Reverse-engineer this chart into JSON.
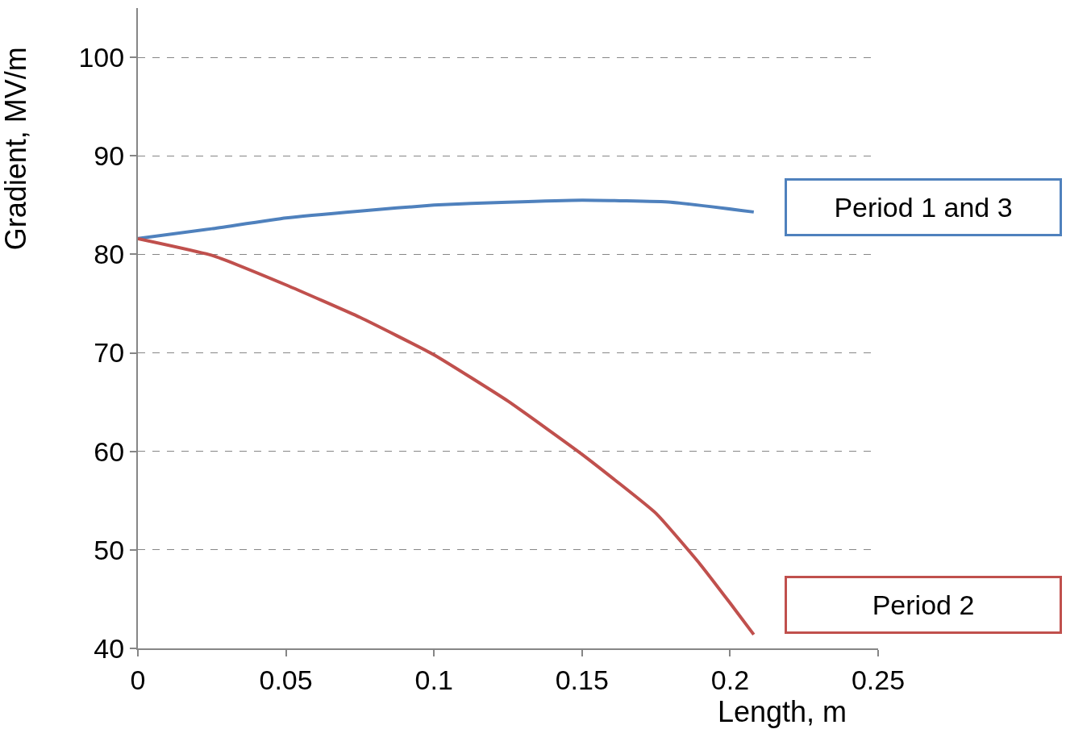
{
  "chart_data": {
    "type": "line",
    "xlabel": "Length, m",
    "ylabel": "Gradient, MV/m",
    "xlim": [
      0,
      0.25
    ],
    "xticks": [
      0,
      0.05,
      0.1,
      0.15,
      0.2,
      0.25
    ],
    "ylim": [
      40,
      105
    ],
    "yticks": [
      40,
      50,
      60,
      70,
      80,
      90,
      100
    ],
    "grid": "y",
    "legend": false,
    "marker": "none",
    "line_style": "solid",
    "series": [
      {
        "name": "Period 1 and 3",
        "color": "#4f81bd",
        "x": [
          0,
          0.025,
          0.05,
          0.075,
          0.1,
          0.125,
          0.15,
          0.18,
          0.208
        ],
        "values": [
          81.6,
          82.6,
          83.7,
          84.4,
          85.0,
          85.3,
          85.5,
          85.3,
          84.3
        ]
      },
      {
        "name": "Period 2",
        "color": "#c0504d",
        "x": [
          0,
          0.025,
          0.05,
          0.075,
          0.1,
          0.125,
          0.15,
          0.175,
          0.19,
          0.2,
          0.208
        ],
        "values": [
          81.6,
          79.9,
          76.9,
          73.6,
          69.8,
          65.1,
          59.7,
          53.7,
          48.5,
          44.6,
          41.4
        ]
      }
    ]
  }
}
